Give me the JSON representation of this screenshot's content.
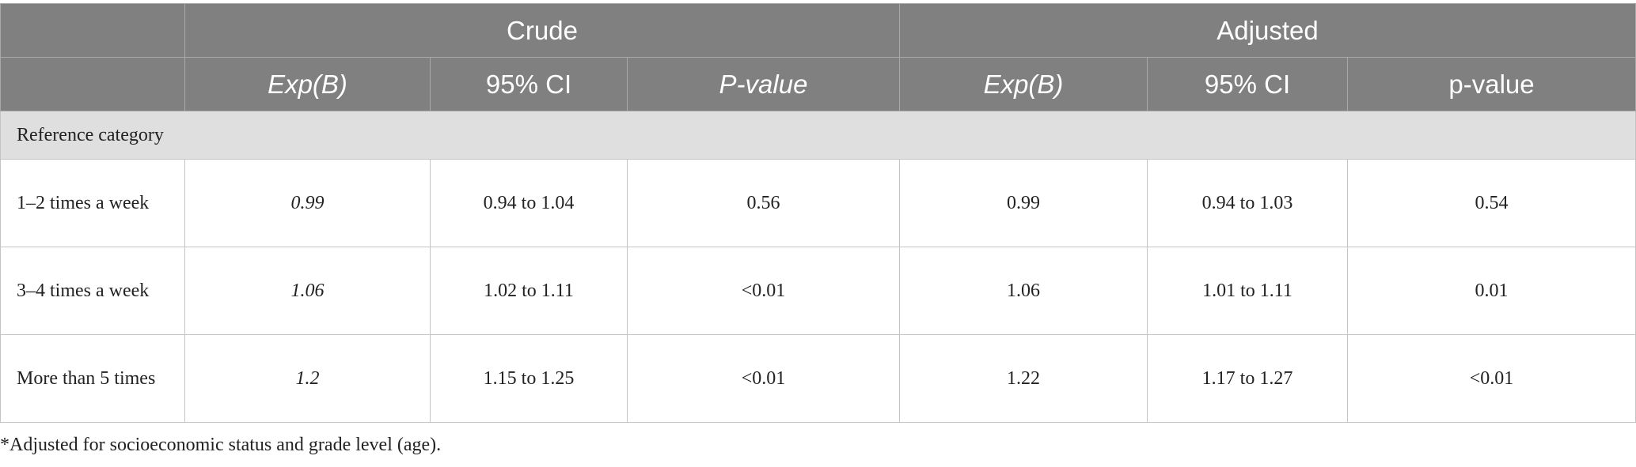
{
  "table": {
    "groups": [
      "Crude",
      "Adjusted"
    ],
    "columns": [
      "Exp(B)",
      "95% CI",
      "P-value",
      "Exp(B)",
      "95% CI",
      "p-value"
    ],
    "section": "Reference category",
    "rows": [
      [
        "1–2 times a week",
        "0.99",
        "0.94 to 1.04",
        "0.56",
        "0.99",
        "0.94 to 1.03",
        "0.54"
      ],
      [
        "3–4 times a week",
        "1.06",
        "1.02 to 1.11",
        "<0.01",
        "1.06",
        "1.01 to 1.11",
        "0.01"
      ],
      [
        "More than 5 times",
        "1.2",
        "1.15 to 1.25",
        "<0.01",
        "1.22",
        "1.17 to 1.27",
        "<0.01"
      ]
    ]
  },
  "footnote": "*Adjusted for socioeconomic status and grade level (age)."
}
